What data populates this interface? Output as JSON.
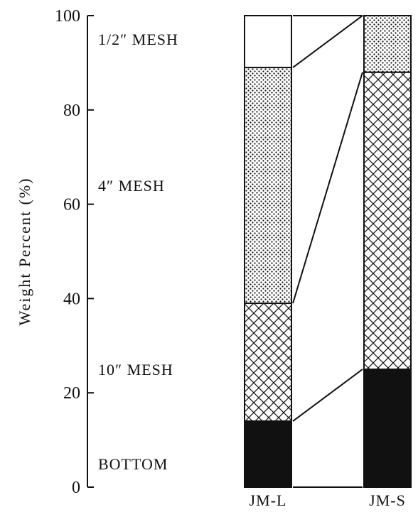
{
  "chart_data": {
    "type": "bar",
    "stacked": true,
    "ylabel": "Weight Percent (%)",
    "ylim": [
      0,
      100
    ],
    "yticks": [
      "0",
      "20",
      "40",
      "60",
      "80",
      "100"
    ],
    "categories": [
      "JM-L",
      "JM-S"
    ],
    "series": [
      {
        "name": "BOTTOM",
        "values": [
          14,
          25
        ],
        "pattern": "solid"
      },
      {
        "name": "10″ MESH",
        "values": [
          25,
          63
        ],
        "pattern": "crosshatch"
      },
      {
        "name": "4″ MESH",
        "values": [
          50,
          12
        ],
        "pattern": "dots"
      },
      {
        "name": "1/2″ MESH",
        "values": [
          11,
          0
        ],
        "pattern": "empty"
      }
    ],
    "segment_labels": [
      {
        "text": "1/2″ MESH",
        "at": 95
      },
      {
        "text": "4″ MESH",
        "at": 64
      },
      {
        "text": "10″ MESH",
        "at": 25
      },
      {
        "text": "BOTTOM",
        "at": 5
      }
    ],
    "colors": {
      "ink": "#111111",
      "background": "#ffffff"
    }
  }
}
